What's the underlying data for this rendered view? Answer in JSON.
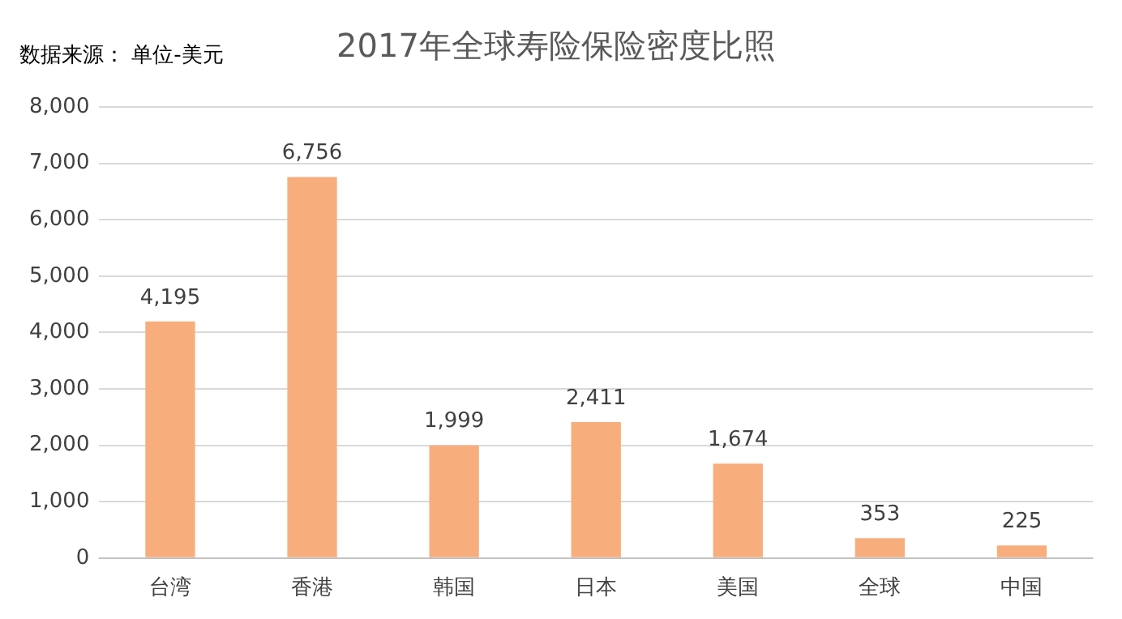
{
  "chart_data": {
    "type": "bar",
    "title": "2017年全球寿险保险密度比照",
    "annotations": [
      "数据来源： 单位-美元"
    ],
    "categories": [
      "台湾",
      "香港",
      "韩国",
      "日本",
      "美国",
      "全球",
      "中国"
    ],
    "values": [
      4195,
      6756,
      1999,
      2411,
      1674,
      353,
      225
    ],
    "value_labels": [
      "4,195",
      "6,756",
      "1,999",
      "2,411",
      "1,674",
      "353",
      "225"
    ],
    "color": "#f8ad7c",
    "ylim": [
      0,
      8000
    ],
    "yticks": [
      0,
      {
        "value": 1000,
        "label": "1,000"
      },
      {
        "value": 2000,
        "label": "2,000"
      },
      {
        "value": 3000,
        "label": "3,000"
      },
      {
        "value": 4000,
        "label": "4,000"
      },
      {
        "value": 5000,
        "label": "5,000"
      },
      {
        "value": 6000,
        "label": "6,000"
      },
      {
        "value": 7000,
        "label": "7,000"
      },
      {
        "value": 8000,
        "label": "8,000"
      }
    ],
    "grid": "y",
    "legend": false
  }
}
